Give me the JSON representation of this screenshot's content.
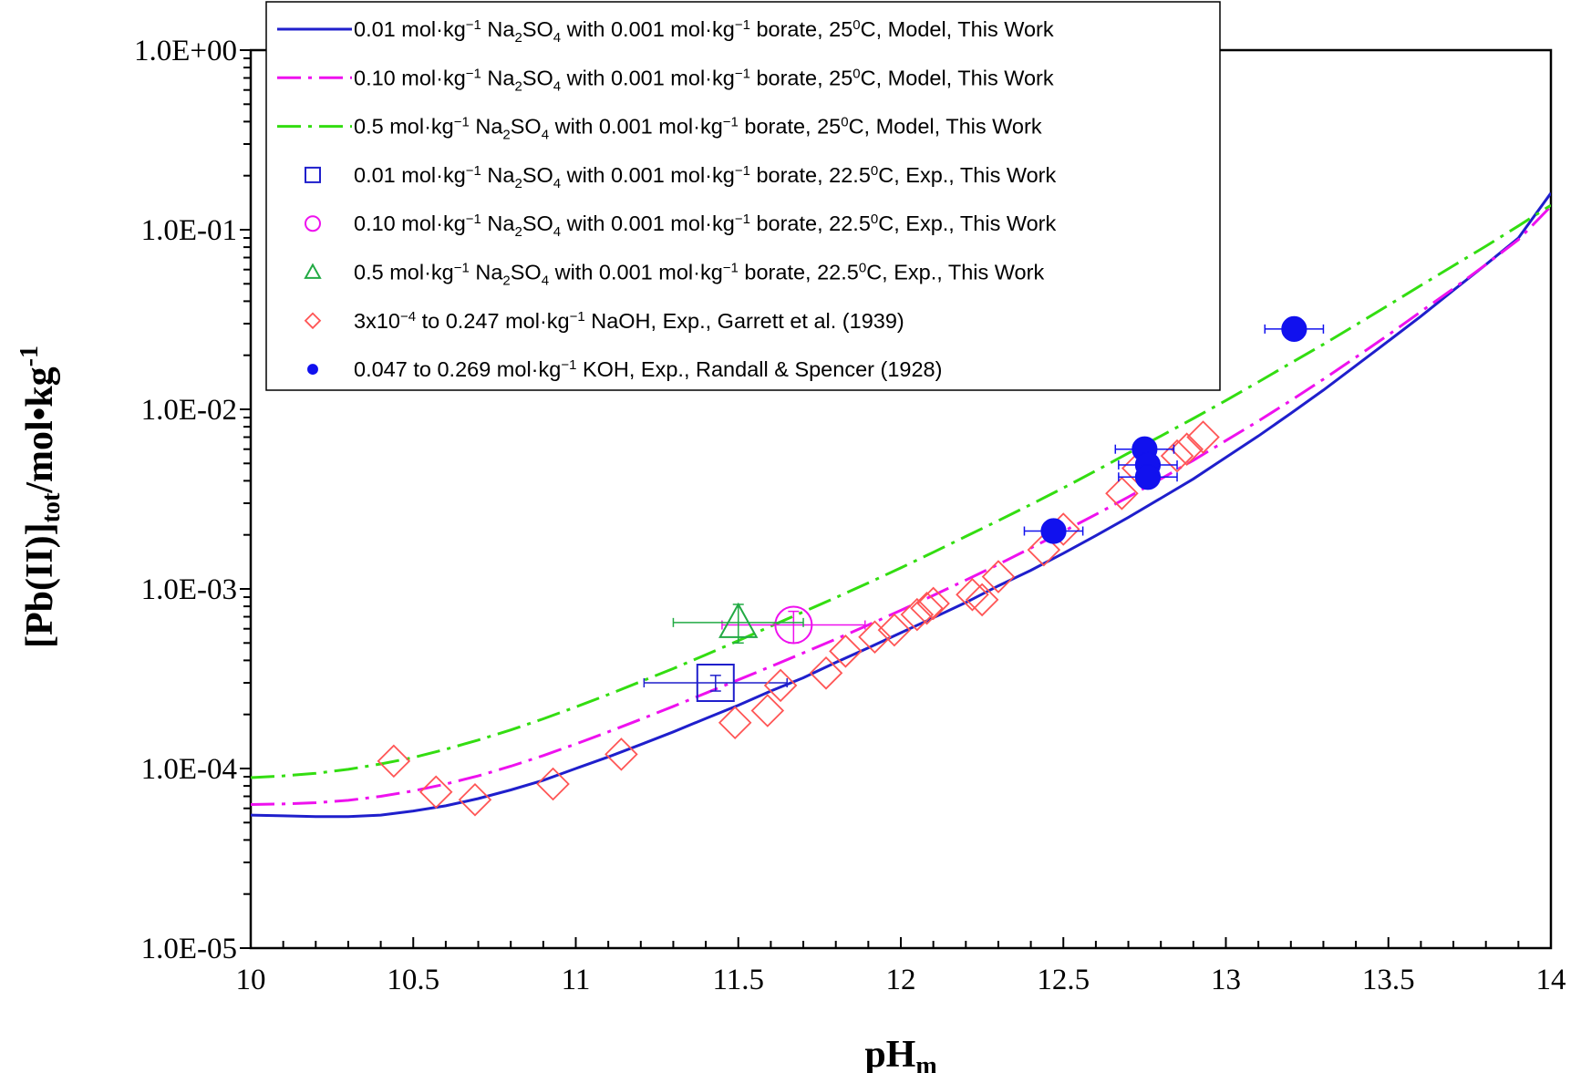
{
  "chart_data": {
    "type": "scatter",
    "title": "",
    "xlabel": {
      "main": "pH",
      "sub": "m"
    },
    "ylabel": {
      "part1": "[Pb(II)]",
      "sub": "tot",
      "part2": "/mol•kg",
      "sup": "-1"
    },
    "xlim": [
      10,
      14
    ],
    "ylim": [
      1e-05,
      1
    ],
    "yscale": "log",
    "grid": false,
    "legend_position": "top-left",
    "x_ticks": [
      "10",
      "10.5",
      "11",
      "11.5",
      "12",
      "12.5",
      "13",
      "13.5",
      "14"
    ],
    "y_ticks": [
      "1.0E-05",
      "1.0E-04",
      "1.0E-03",
      "1.0E-02",
      "1.0E-01",
      "1.0E+00"
    ],
    "series": [
      {
        "name": "0.01 mol·kg⁻¹ Na₂SO₄ with 0.001 mol·kg⁻¹ borate, 25⁰C, Model, This Work",
        "kind": "line",
        "style": "solid",
        "color": "#1f1fcc",
        "x": [
          10,
          10.1,
          10.2,
          10.3,
          10.4,
          10.5,
          10.6,
          10.7,
          10.8,
          10.9,
          11,
          11.1,
          11.2,
          11.3,
          11.4,
          11.5,
          11.6,
          11.7,
          11.8,
          11.9,
          12,
          12.1,
          12.2,
          12.3,
          12.4,
          12.5,
          12.6,
          12.7,
          12.8,
          12.9,
          13,
          13.1,
          13.2,
          13.3,
          13.4,
          13.5,
          13.6,
          13.7,
          13.8,
          13.9,
          14
        ],
        "y": [
          5.5e-05,
          5.45e-05,
          5.4e-05,
          5.4e-05,
          5.5e-05,
          5.8e-05,
          6.2e-05,
          6.8e-05,
          7.6e-05,
          8.6e-05,
          0.0001,
          0.000116,
          0.000136,
          0.00016,
          0.00019,
          0.000225,
          0.00027,
          0.00032,
          0.00039,
          0.00047,
          0.00057,
          0.00069,
          0.00084,
          0.00104,
          0.00127,
          0.00158,
          0.00198,
          0.0025,
          0.0032,
          0.0041,
          0.0054,
          0.0071,
          0.0095,
          0.0128,
          0.0175,
          0.024,
          0.033,
          0.046,
          0.064,
          0.09,
          0.16
        ]
      },
      {
        "name": "0.10 mol·kg⁻¹ Na₂SO₄ with 0.001 mol·kg⁻¹ borate, 25⁰C, Model, This Work",
        "kind": "line",
        "style": "dashdot",
        "color": "#ee11ee",
        "x": [
          10,
          10.1,
          10.2,
          10.3,
          10.4,
          10.5,
          10.6,
          10.7,
          10.8,
          10.9,
          11,
          11.1,
          11.2,
          11.3,
          11.4,
          11.5,
          11.6,
          11.7,
          11.8,
          11.9,
          12,
          12.1,
          12.2,
          12.3,
          12.4,
          12.5,
          12.6,
          12.7,
          12.8,
          12.9,
          13,
          13.1,
          13.2,
          13.3,
          13.4,
          13.5,
          13.6,
          13.7,
          13.8,
          13.9,
          14
        ],
        "y": [
          6.3e-05,
          6.35e-05,
          6.45e-05,
          6.65e-05,
          7e-05,
          7.5e-05,
          8.2e-05,
          9.1e-05,
          0.000103,
          0.000118,
          0.000137,
          0.00016,
          0.000188,
          0.000222,
          0.000263,
          0.000312,
          0.00037,
          0.00044,
          0.000525,
          0.00063,
          0.00076,
          0.00092,
          0.00112,
          0.00137,
          0.00169,
          0.00209,
          0.0026,
          0.00325,
          0.0041,
          0.0052,
          0.0067,
          0.0086,
          0.0112,
          0.0147,
          0.0195,
          0.026,
          0.035,
          0.047,
          0.064,
          0.088,
          0.135
        ]
      },
      {
        "name": "0.5 mol·kg⁻¹ Na₂SO₄ with 0.001 mol·kg⁻¹ borate, 25⁰C, Model, This Work",
        "kind": "line",
        "style": "dashdot",
        "color": "#33dd11",
        "x": [
          10,
          10.1,
          10.2,
          10.3,
          10.4,
          10.5,
          10.6,
          10.7,
          10.8,
          10.9,
          11,
          11.1,
          11.2,
          11.3,
          11.4,
          11.5,
          11.6,
          11.7,
          11.8,
          11.9,
          12,
          12.1,
          12.2,
          12.3,
          12.4,
          12.5,
          12.6,
          12.7,
          12.8,
          12.9,
          13,
          13.1,
          13.2,
          13.3,
          13.4,
          13.5,
          13.6,
          13.7,
          13.8,
          13.9,
          14
        ],
        "y": [
          8.9e-05,
          9.1e-05,
          9.4e-05,
          9.9e-05,
          0.000106,
          0.000115,
          0.000128,
          0.000144,
          0.000164,
          0.000189,
          0.00022,
          0.000258,
          0.000305,
          0.00036,
          0.00043,
          0.000515,
          0.00062,
          0.000745,
          0.000895,
          0.00108,
          0.00131,
          0.0016,
          0.00196,
          0.0024,
          0.00295,
          0.00365,
          0.00455,
          0.0057,
          0.0071,
          0.0089,
          0.0112,
          0.0142,
          0.0181,
          0.023,
          0.0295,
          0.038,
          0.049,
          0.063,
          0.081,
          0.105,
          0.137
        ]
      },
      {
        "name": "0.01 mol·kg⁻¹ Na₂SO₄ with 0.001 mol·kg⁻¹ borate, 22.5⁰C, Exp., This Work",
        "kind": "points",
        "marker": "square",
        "color": "#1f1fcc",
        "points": [
          {
            "x": 11.43,
            "y": 0.0003,
            "xerr": 0.22,
            "yerr": [
              0.00027,
              0.00033
            ]
          }
        ]
      },
      {
        "name": "0.10 mol·kg⁻¹ Na₂SO₄ with 0.001 mol·kg⁻¹ borate, 22.5⁰C, Exp., This Work",
        "kind": "points",
        "marker": "circle",
        "color": "#ee11ee",
        "points": [
          {
            "x": 11.67,
            "y": 0.00063,
            "xerr": 0.22,
            "yerr": [
              0.0005,
              0.00075
            ]
          }
        ]
      },
      {
        "name": "0.5 mol·kg⁻¹ Na₂SO₄ with 0.001 mol·kg⁻¹ borate, 22.5⁰C, Exp., This Work",
        "kind": "points",
        "marker": "triangle",
        "color": "#22aa44",
        "points": [
          {
            "x": 11.5,
            "y": 0.00065,
            "xerr": 0.2,
            "yerr": [
              0.0005,
              0.00082
            ]
          }
        ]
      },
      {
        "name": "3x10⁻⁴ to 0.247 mol·kg⁻¹ NaOH, Exp., Garrett et al. (1939)",
        "kind": "points",
        "marker": "diamond",
        "color": "#ff5555",
        "points": [
          {
            "x": 10.44,
            "y": 0.00011
          },
          {
            "x": 10.57,
            "y": 7.4e-05
          },
          {
            "x": 10.69,
            "y": 6.7e-05
          },
          {
            "x": 10.93,
            "y": 8.2e-05
          },
          {
            "x": 11.14,
            "y": 0.00012
          },
          {
            "x": 11.49,
            "y": 0.00018
          },
          {
            "x": 11.59,
            "y": 0.00021
          },
          {
            "x": 11.63,
            "y": 0.00029
          },
          {
            "x": 11.77,
            "y": 0.00034
          },
          {
            "x": 11.83,
            "y": 0.00045
          },
          {
            "x": 11.92,
            "y": 0.00054
          },
          {
            "x": 11.98,
            "y": 0.00059
          },
          {
            "x": 12.05,
            "y": 0.00072
          },
          {
            "x": 12.08,
            "y": 0.00078
          },
          {
            "x": 12.1,
            "y": 0.00083
          },
          {
            "x": 12.22,
            "y": 0.00093
          },
          {
            "x": 12.25,
            "y": 0.00087
          },
          {
            "x": 12.3,
            "y": 0.00117
          },
          {
            "x": 12.44,
            "y": 0.00165
          },
          {
            "x": 12.5,
            "y": 0.00215
          },
          {
            "x": 12.68,
            "y": 0.0034
          },
          {
            "x": 12.73,
            "y": 0.0047
          },
          {
            "x": 12.85,
            "y": 0.0055
          },
          {
            "x": 12.88,
            "y": 0.006
          },
          {
            "x": 12.93,
            "y": 0.007
          }
        ]
      },
      {
        "name": "0.047 to 0.269 mol·kg⁻¹ KOH, Exp., Randall & Spencer (1928)",
        "kind": "points",
        "marker": "filled-circle",
        "color": "#1111ee",
        "points": [
          {
            "x": 12.47,
            "y": 0.0021,
            "xerr": 0.09
          },
          {
            "x": 12.75,
            "y": 0.006,
            "xerr": 0.09
          },
          {
            "x": 12.76,
            "y": 0.0049,
            "xerr": 0.09
          },
          {
            "x": 12.76,
            "y": 0.0042,
            "xerr": 0.09
          },
          {
            "x": 13.21,
            "y": 0.028,
            "xerr": 0.09
          }
        ]
      }
    ],
    "legend_entries": [
      {
        "prefix": "0.01 mol·kg",
        "sup": "−1",
        "mid": " Na",
        "sub": "2",
        "mid2": "SO",
        "sub2": "4",
        "rest": " with 0.001 mol·kg",
        "sup2": "−1",
        "rest2": " borate, 25",
        "sup3": "0",
        "rest3": "C, Model, This Work"
      },
      {
        "prefix": "0.10 mol·kg",
        "sup": "−1",
        "mid": " Na",
        "sub": "2",
        "mid2": "SO",
        "sub2": "4",
        "rest": " with 0.001 mol·kg",
        "sup2": "−1",
        "rest2": " borate, 25",
        "sup3": "0",
        "rest3": "C, Model, This Work"
      },
      {
        "prefix": "0.5 mol·kg",
        "sup": "−1",
        "mid": " Na",
        "sub": "2",
        "mid2": "SO",
        "sub2": "4",
        "rest": " with 0.001 mol·kg",
        "sup2": "−1",
        "rest2": " borate, 25",
        "sup3": "0",
        "rest3": "C, Model, This Work"
      },
      {
        "prefix": "0.01 mol·kg",
        "sup": "−1",
        "mid": " Na",
        "sub": "2",
        "mid2": "SO",
        "sub2": "4",
        "rest": " with 0.001 mol·kg",
        "sup2": "−1",
        "rest2": " borate, 22.5",
        "sup3": "0",
        "rest3": "C, Exp., This Work"
      },
      {
        "prefix": "0.10 mol·kg",
        "sup": "−1",
        "mid": " Na",
        "sub": "2",
        "mid2": "SO",
        "sub2": "4",
        "rest": " with 0.001 mol·kg",
        "sup2": "−1",
        "rest2": " borate, 22.5",
        "sup3": "0",
        "rest3": "C, Exp., This Work"
      },
      {
        "prefix": "0.5 mol·kg",
        "sup": "−1",
        "mid": " Na",
        "sub": "2",
        "mid2": "SO",
        "sub2": "4",
        "rest": " with 0.001 mol·kg",
        "sup2": "−1",
        "rest2": " borate, 22.5",
        "sup3": "0",
        "rest3": "C, Exp., This Work"
      },
      {
        "prefix": "3x10",
        "sup": "−4",
        "mid": " to 0.247 mol·kg",
        "sub": "",
        "mid2": "",
        "sub2": "",
        "rest": "",
        "sup2": "−1",
        "rest2": " NaOH, Exp., Garrett et al. (1939)",
        "sup3": "",
        "rest3": ""
      },
      {
        "prefix": "0.047 to 0.269 mol·kg",
        "sup": "−1",
        "mid": " KOH, Exp., Randall & Spencer (1928)",
        "sub": "",
        "mid2": "",
        "sub2": "",
        "rest": "",
        "sup2": "",
        "rest2": "",
        "sup3": "",
        "rest3": ""
      }
    ]
  }
}
